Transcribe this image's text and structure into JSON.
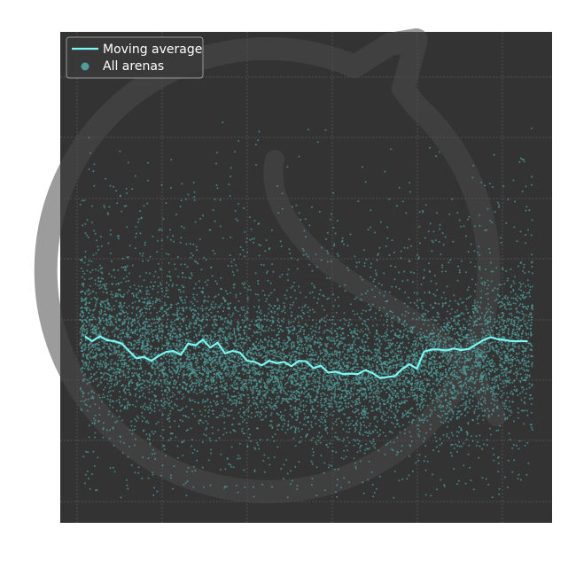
{
  "chart_data": {
    "type": "scatter",
    "title": "",
    "xlabel": "",
    "ylabel": "",
    "xlim": [
      0,
      100
    ],
    "ylim": [
      0,
      100
    ],
    "grid": true,
    "legend_position": "top-left",
    "colors": {
      "plot_background": "#333333",
      "grid": "#5a5a5a",
      "scatter_points": "#4f9e9b",
      "moving_average": "#7df7f2",
      "watermark": "#4a4a4a",
      "legend_border": "#9a9a9a"
    },
    "series": [
      {
        "name": "Moving average",
        "type": "line",
        "x": [
          5,
          6.5,
          8,
          9.5,
          11,
          12.5,
          14,
          15.5,
          17,
          18.5,
          20,
          21.5,
          23,
          24.5,
          26,
          27.5,
          29,
          30.5,
          32,
          33.5,
          35,
          36.5,
          38,
          39.5,
          41,
          42.5,
          44,
          45.5,
          47,
          48.5,
          50,
          51.5,
          53,
          54.5,
          56,
          57.5,
          59,
          60.5,
          62,
          63.5,
          65,
          66.5,
          68,
          69.5,
          71,
          72.5,
          74,
          75.5,
          77,
          78.5,
          80,
          81.5,
          83,
          84.5,
          86,
          87.5,
          89,
          90.5,
          92,
          93.5,
          95
        ],
        "y": [
          38,
          37,
          38,
          37.2,
          37,
          36.5,
          35,
          33.5,
          33.8,
          33,
          34,
          34.8,
          35,
          34.2,
          36.5,
          36.2,
          37.3,
          35.7,
          36.7,
          34.5,
          35,
          34.7,
          33,
          32.8,
          32.1,
          33,
          32.5,
          32.8,
          31.9,
          33,
          32.9,
          31.5,
          32,
          30.6,
          30.8,
          30.3,
          30.4,
          30.3,
          31.1,
          30.5,
          29.5,
          29.7,
          29.9,
          31.3,
          32.3,
          31.4,
          34.9,
          35.3,
          35.3,
          35.1,
          35.5,
          35.2,
          35.4,
          36.3,
          37.2,
          37.8,
          37.4,
          37.2,
          37,
          37,
          37
        ],
        "color": "#7df7f2"
      },
      {
        "name": "All arenas",
        "type": "scatter",
        "distribution": {
          "x_range": [
            4,
            96
          ],
          "band_center": [
            38,
            36,
            34,
            32,
            31,
            30,
            31,
            34,
            37
          ],
          "band_halfwidth": [
            13,
            12,
            12,
            11,
            11,
            11,
            11,
            12,
            13
          ],
          "outer_y_range": [
            5,
            82
          ]
        },
        "color": "#4f9e9b"
      }
    ]
  },
  "legend": {
    "items": [
      {
        "label": "Moving average",
        "symbol": "line"
      },
      {
        "label": "All arenas",
        "symbol": "dot"
      }
    ]
  }
}
